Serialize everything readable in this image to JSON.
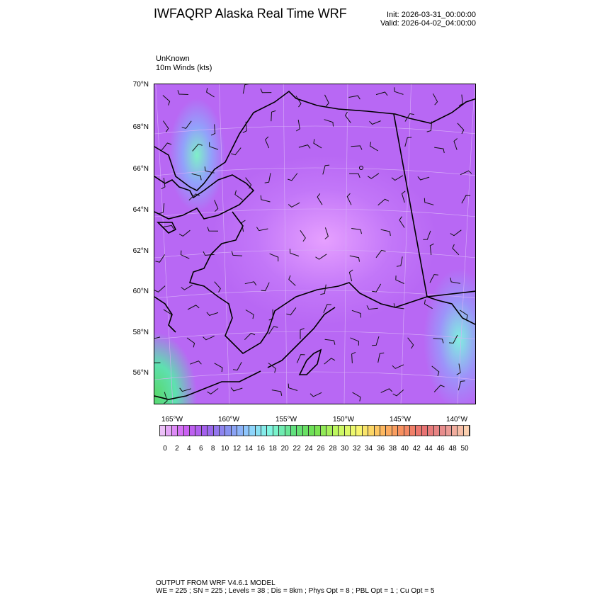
{
  "header": {
    "title": "IWFAQRP Alaska Real Time WRF",
    "init": "Init: 2026-03-31_00:00:00",
    "valid": "Valid: 2026-04-02_04:00:00"
  },
  "field": {
    "name": "UnKnown",
    "label": "10m Winds   (kts)"
  },
  "map": {
    "lat_labels": [
      "70°N",
      "68°N",
      "66°N",
      "64°N",
      "62°N",
      "60°N",
      "58°N",
      "56°N"
    ],
    "lon_labels": [
      "165°W",
      "160°W",
      "155°W",
      "150°W",
      "145°W",
      "140°W"
    ]
  },
  "colorbar": {
    "labels": [
      "0",
      "2",
      "4",
      "6",
      "8",
      "10",
      "12",
      "14",
      "16",
      "18",
      "20",
      "22",
      "24",
      "26",
      "28",
      "30",
      "32",
      "34",
      "36",
      "38",
      "40",
      "42",
      "44",
      "46",
      "48",
      "50"
    ],
    "anchor_colors": [
      "#ecc0f8",
      "#d060f4",
      "#a060ec",
      "#8890f0",
      "#90d0ff",
      "#80f8e0",
      "#60e080",
      "#70e050",
      "#c0f860",
      "#f8f870",
      "#ffc060",
      "#f89060",
      "#e87070",
      "#e89090",
      "#fcd0b0"
    ]
  },
  "footer": {
    "line1": "OUTPUT FROM WRF V4.6.1 MODEL",
    "line2": "WE = 225 ; SN = 225 ; Levels = 38 ; Dis = 8km ; Phys Opt = 8 ; PBL Opt = 1 ; Cu Opt = 5"
  }
}
